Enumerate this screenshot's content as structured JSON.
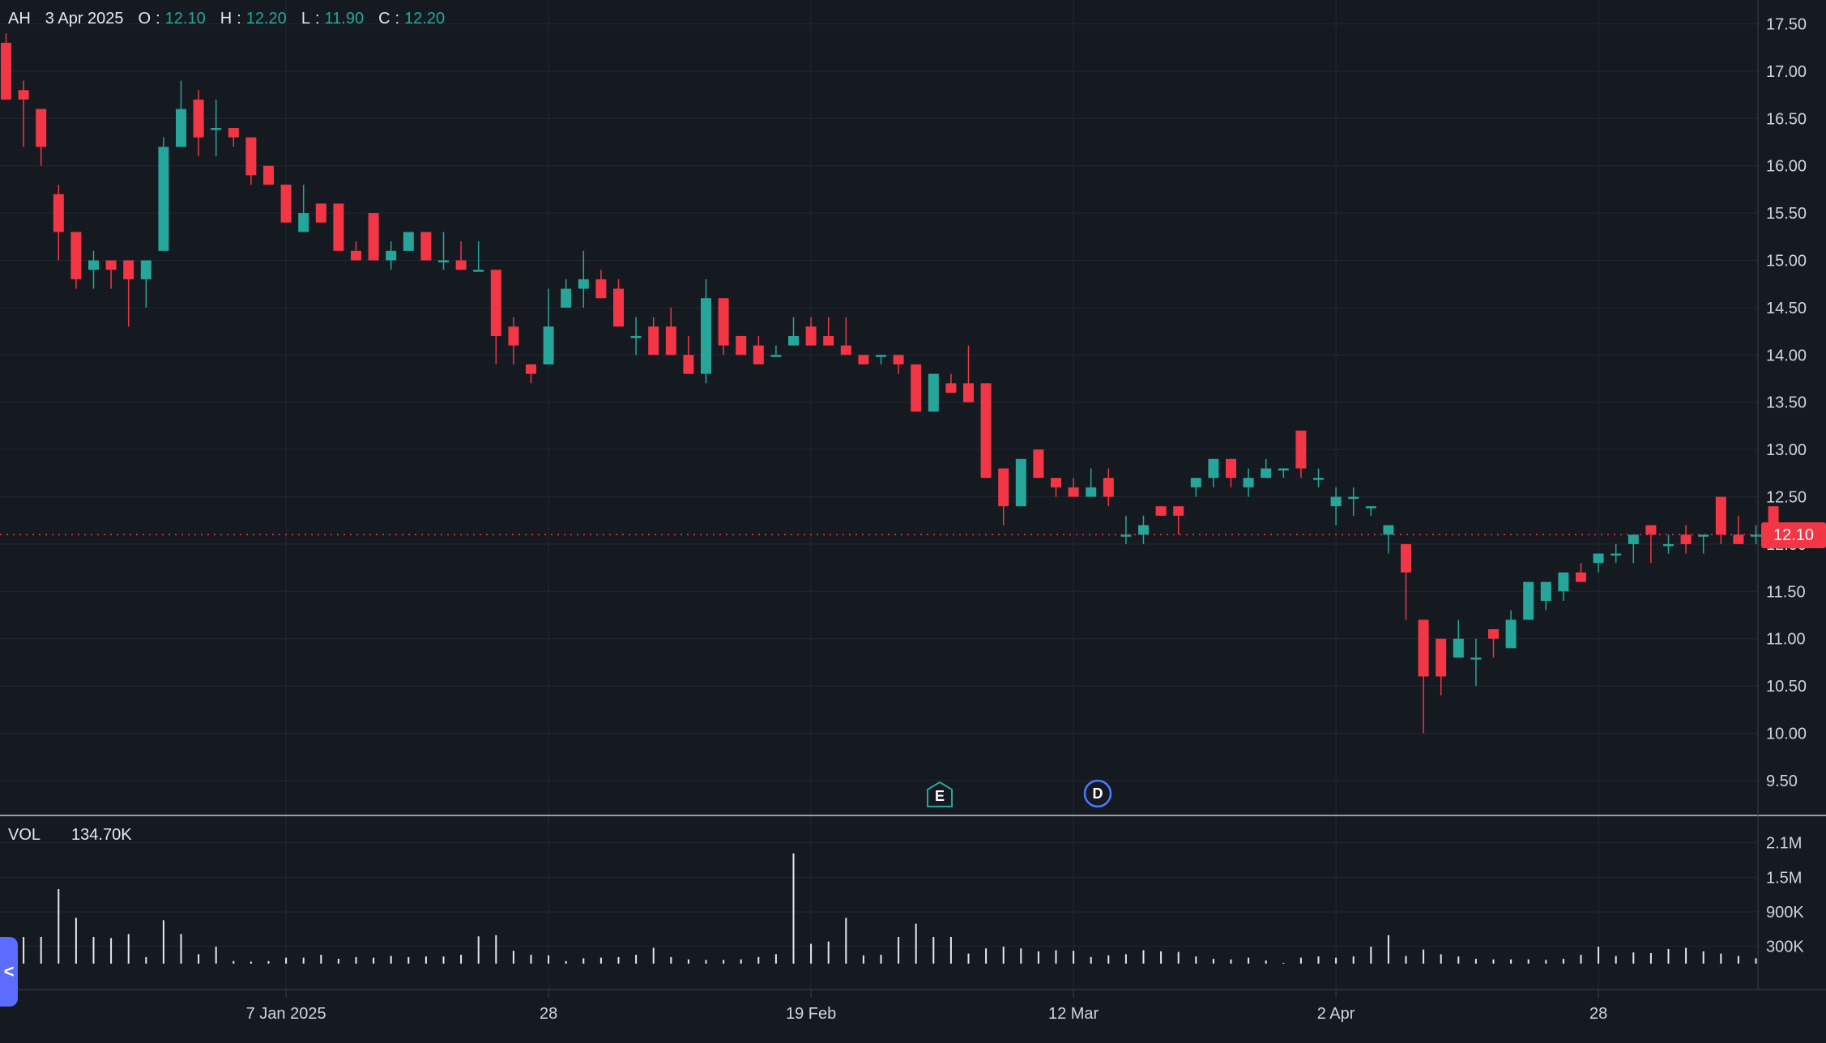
{
  "legend": {
    "symbol": "AH",
    "date": "3 Apr 2025",
    "open_label": "O",
    "open": "12.10",
    "high_label": "H",
    "high": "12.20",
    "low_label": "L",
    "low": "11.90",
    "close_label": "C",
    "close": "12.20"
  },
  "volume_legend": {
    "label": "VOL",
    "value": "134.70K"
  },
  "last_price_tag": "12.10",
  "markers": {
    "earnings": "E",
    "dividend": "D"
  },
  "collapse_glyph": "<",
  "colors": {
    "up": "#26a69a",
    "down": "#f23645",
    "background": "#151920",
    "grid": "#232733",
    "text": "#d1d4dc",
    "volume": "#e6e8ee"
  },
  "chart_data": {
    "type": "candlestick",
    "ylim": [
      9.25,
      17.6
    ],
    "y_ticks": [
      "17.50",
      "17.00",
      "16.50",
      "16.00",
      "15.50",
      "15.00",
      "14.50",
      "14.00",
      "13.50",
      "13.00",
      "12.50",
      "12.00",
      "11.50",
      "11.00",
      "10.50",
      "10.00",
      "9.50"
    ],
    "x_ticks": [
      "7 Jan 2025",
      "28",
      "19 Feb",
      "12 Mar",
      "2 Apr",
      "28"
    ],
    "x_tick_index": [
      16,
      31,
      46,
      61,
      76,
      91
    ],
    "last_price": 12.1,
    "candles": [
      [
        17.3,
        17.4,
        16.7,
        16.7
      ],
      [
        16.8,
        16.9,
        16.2,
        16.7
      ],
      [
        16.6,
        16.6,
        16.0,
        16.2
      ],
      [
        15.7,
        15.8,
        15.0,
        15.3
      ],
      [
        15.3,
        15.3,
        14.7,
        14.8
      ],
      [
        14.9,
        15.1,
        14.7,
        15.0
      ],
      [
        15.0,
        15.0,
        14.7,
        14.9
      ],
      [
        15.0,
        15.0,
        14.3,
        14.8
      ],
      [
        14.8,
        15.0,
        14.5,
        15.0
      ],
      [
        15.1,
        16.3,
        15.1,
        16.2
      ],
      [
        16.2,
        16.9,
        16.2,
        16.6
      ],
      [
        16.7,
        16.8,
        16.1,
        16.3
      ],
      [
        16.4,
        16.7,
        16.1,
        16.4
      ],
      [
        16.4,
        16.4,
        16.2,
        16.3
      ],
      [
        16.3,
        16.3,
        15.8,
        15.9
      ],
      [
        16.0,
        16.0,
        15.8,
        15.8
      ],
      [
        15.8,
        15.8,
        15.4,
        15.4
      ],
      [
        15.3,
        15.8,
        15.3,
        15.5
      ],
      [
        15.6,
        15.6,
        15.4,
        15.4
      ],
      [
        15.6,
        15.6,
        15.1,
        15.1
      ],
      [
        15.1,
        15.2,
        15.0,
        15.0
      ],
      [
        15.5,
        15.5,
        15.0,
        15.0
      ],
      [
        15.0,
        15.2,
        14.9,
        15.1
      ],
      [
        15.1,
        15.3,
        15.1,
        15.3
      ],
      [
        15.3,
        15.3,
        15.0,
        15.0
      ],
      [
        15.0,
        15.3,
        14.9,
        15.0
      ],
      [
        15.0,
        15.2,
        14.9,
        14.9
      ],
      [
        14.9,
        15.2,
        14.9,
        14.9
      ],
      [
        14.9,
        14.9,
        13.9,
        14.2
      ],
      [
        14.3,
        14.4,
        13.9,
        14.1
      ],
      [
        13.9,
        13.9,
        13.7,
        13.8
      ],
      [
        13.9,
        14.7,
        13.9,
        14.3
      ],
      [
        14.5,
        14.8,
        14.5,
        14.7
      ],
      [
        14.7,
        15.1,
        14.5,
        14.8
      ],
      [
        14.8,
        14.9,
        14.6,
        14.6
      ],
      [
        14.7,
        14.8,
        14.3,
        14.3
      ],
      [
        14.2,
        14.4,
        14.0,
        14.2
      ],
      [
        14.3,
        14.4,
        14.0,
        14.0
      ],
      [
        14.3,
        14.5,
        14.0,
        14.0
      ],
      [
        14.0,
        14.2,
        13.8,
        13.8
      ],
      [
        13.8,
        14.8,
        13.7,
        14.6
      ],
      [
        14.6,
        14.6,
        14.0,
        14.1
      ],
      [
        14.2,
        14.2,
        14.0,
        14.0
      ],
      [
        14.1,
        14.2,
        13.9,
        13.9
      ],
      [
        14.0,
        14.1,
        14.0,
        14.0
      ],
      [
        14.1,
        14.4,
        14.1,
        14.2
      ],
      [
        14.3,
        14.4,
        14.1,
        14.1
      ],
      [
        14.2,
        14.4,
        14.1,
        14.1
      ],
      [
        14.1,
        14.4,
        14.0,
        14.0
      ],
      [
        14.0,
        14.0,
        13.9,
        13.9
      ],
      [
        14.0,
        14.0,
        13.9,
        14.0
      ],
      [
        14.0,
        14.0,
        13.8,
        13.9
      ],
      [
        13.9,
        13.9,
        13.4,
        13.4
      ],
      [
        13.4,
        13.8,
        13.4,
        13.8
      ],
      [
        13.7,
        13.8,
        13.6,
        13.6
      ],
      [
        13.7,
        14.1,
        13.5,
        13.5
      ],
      [
        13.7,
        13.7,
        12.7,
        12.7
      ],
      [
        12.8,
        12.8,
        12.2,
        12.4
      ],
      [
        12.4,
        12.9,
        12.4,
        12.9
      ],
      [
        13.0,
        13.0,
        12.7,
        12.7
      ],
      [
        12.7,
        12.7,
        12.5,
        12.6
      ],
      [
        12.6,
        12.7,
        12.5,
        12.5
      ],
      [
        12.5,
        12.8,
        12.5,
        12.6
      ],
      [
        12.7,
        12.8,
        12.4,
        12.5
      ],
      [
        12.1,
        12.3,
        12.0,
        12.1
      ],
      [
        12.1,
        12.3,
        12.0,
        12.2
      ],
      [
        12.4,
        12.4,
        12.3,
        12.3
      ],
      [
        12.4,
        12.4,
        12.1,
        12.3
      ],
      [
        12.6,
        12.7,
        12.5,
        12.7
      ],
      [
        12.7,
        12.9,
        12.6,
        12.9
      ],
      [
        12.9,
        12.9,
        12.6,
        12.7
      ],
      [
        12.6,
        12.8,
        12.5,
        12.7
      ],
      [
        12.7,
        12.9,
        12.7,
        12.8
      ],
      [
        12.8,
        12.8,
        12.7,
        12.8
      ],
      [
        13.2,
        13.2,
        12.7,
        12.8
      ],
      [
        12.7,
        12.8,
        12.6,
        12.7
      ],
      [
        12.4,
        12.6,
        12.2,
        12.5
      ],
      [
        12.5,
        12.6,
        12.3,
        12.5
      ],
      [
        12.4,
        12.4,
        12.3,
        12.4
      ],
      [
        12.1,
        12.2,
        11.9,
        12.2
      ],
      [
        12.0,
        12.0,
        11.2,
        11.7
      ],
      [
        11.2,
        11.2,
        10.0,
        10.6
      ],
      [
        11.0,
        11.0,
        10.4,
        10.6
      ],
      [
        10.8,
        11.2,
        10.8,
        11.0
      ],
      [
        10.8,
        11.0,
        10.5,
        10.8
      ],
      [
        11.1,
        11.1,
        10.8,
        11.0
      ],
      [
        10.9,
        11.3,
        10.9,
        11.2
      ],
      [
        11.2,
        11.6,
        11.2,
        11.6
      ],
      [
        11.4,
        11.6,
        11.3,
        11.6
      ],
      [
        11.5,
        11.7,
        11.4,
        11.7
      ],
      [
        11.7,
        11.8,
        11.6,
        11.6
      ],
      [
        11.8,
        11.9,
        11.7,
        11.9
      ],
      [
        11.9,
        12.0,
        11.8,
        11.9
      ],
      [
        12.0,
        12.1,
        11.8,
        12.1
      ],
      [
        12.2,
        12.2,
        11.8,
        12.1
      ],
      [
        12.0,
        12.1,
        11.9,
        12.0
      ],
      [
        12.1,
        12.2,
        11.9,
        12.0
      ],
      [
        12.1,
        12.1,
        11.9,
        12.1
      ],
      [
        12.5,
        12.5,
        12.0,
        12.1
      ],
      [
        12.1,
        12.3,
        12.0,
        12.0
      ],
      [
        12.1,
        12.2,
        12.0,
        12.1
      ],
      [
        12.4,
        12.4,
        12.1,
        12.1
      ]
    ],
    "volume": {
      "label": "VOL",
      "ylim": [
        0,
        2250000
      ],
      "y_ticks": [
        "2.1M",
        "1.5M",
        "900K",
        "300K"
      ],
      "y_tick_values": [
        2100000,
        1500000,
        900000,
        300000
      ],
      "values": [
        350000,
        450000,
        450000,
        1280000,
        780000,
        450000,
        430000,
        500000,
        100000,
        740000,
        500000,
        150000,
        280000,
        30000,
        20000,
        30000,
        90000,
        90000,
        140000,
        70000,
        100000,
        90000,
        120000,
        100000,
        110000,
        110000,
        140000,
        460000,
        480000,
        210000,
        140000,
        130000,
        30000,
        80000,
        90000,
        100000,
        140000,
        260000,
        100000,
        60000,
        50000,
        50000,
        60000,
        100000,
        150000,
        1900000,
        330000,
        370000,
        780000,
        130000,
        140000,
        450000,
        680000,
        450000,
        450000,
        160000,
        250000,
        280000,
        250000,
        200000,
        220000,
        210000,
        100000,
        130000,
        150000,
        220000,
        200000,
        190000,
        110000,
        70000,
        60000,
        90000,
        40000,
        0,
        90000,
        110000,
        90000,
        110000,
        280000,
        480000,
        120000,
        230000,
        150000,
        110000,
        70000,
        60000,
        60000,
        60000,
        50000,
        70000,
        140000,
        280000,
        120000,
        180000,
        170000,
        240000,
        260000,
        200000,
        160000,
        120000,
        80000
      ]
    }
  }
}
